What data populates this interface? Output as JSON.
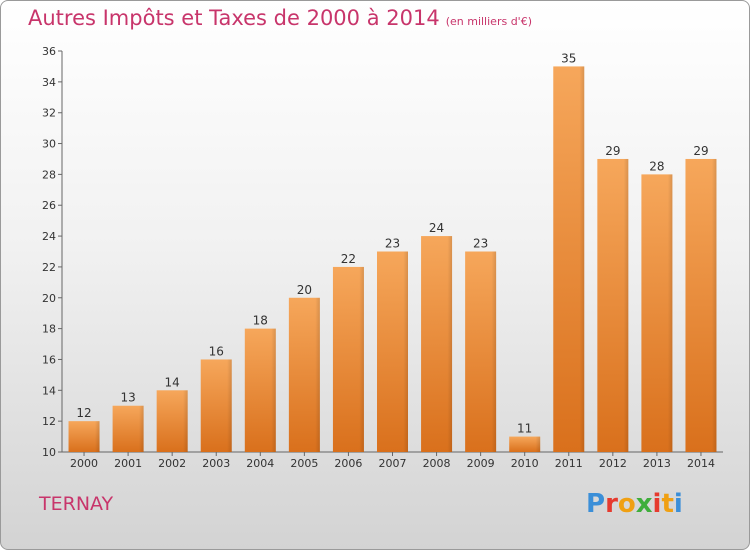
{
  "title": "Autres Impôts et Taxes de 2000 à 2014",
  "unit_note": "(en milliers d'€)",
  "place": "TERNAY",
  "logo": {
    "letters": [
      "P",
      "r",
      "o",
      "x",
      "i",
      "t",
      "i"
    ],
    "colors": [
      "#3b8fd8",
      "#e63a2e",
      "#f0a012",
      "#3fae3c",
      "#e63a2e",
      "#f0a012",
      "#3b8fd8"
    ]
  },
  "colors": {
    "bar_top": "#f6a75b",
    "bar_bottom": "#d9701c",
    "title": "#c8356b"
  },
  "chart_data": {
    "type": "bar",
    "categories": [
      "2000",
      "2001",
      "2002",
      "2003",
      "2004",
      "2005",
      "2006",
      "2007",
      "2008",
      "2009",
      "2010",
      "2011",
      "2012",
      "2013",
      "2014"
    ],
    "values": [
      12,
      13,
      14,
      16,
      18,
      20,
      22,
      23,
      24,
      23,
      11,
      35,
      29,
      28,
      29
    ],
    "ylim": [
      10,
      36
    ],
    "yticks": [
      10,
      12,
      14,
      16,
      18,
      20,
      22,
      24,
      26,
      28,
      30,
      32,
      34,
      36
    ],
    "grid": false,
    "data_labels": true
  }
}
